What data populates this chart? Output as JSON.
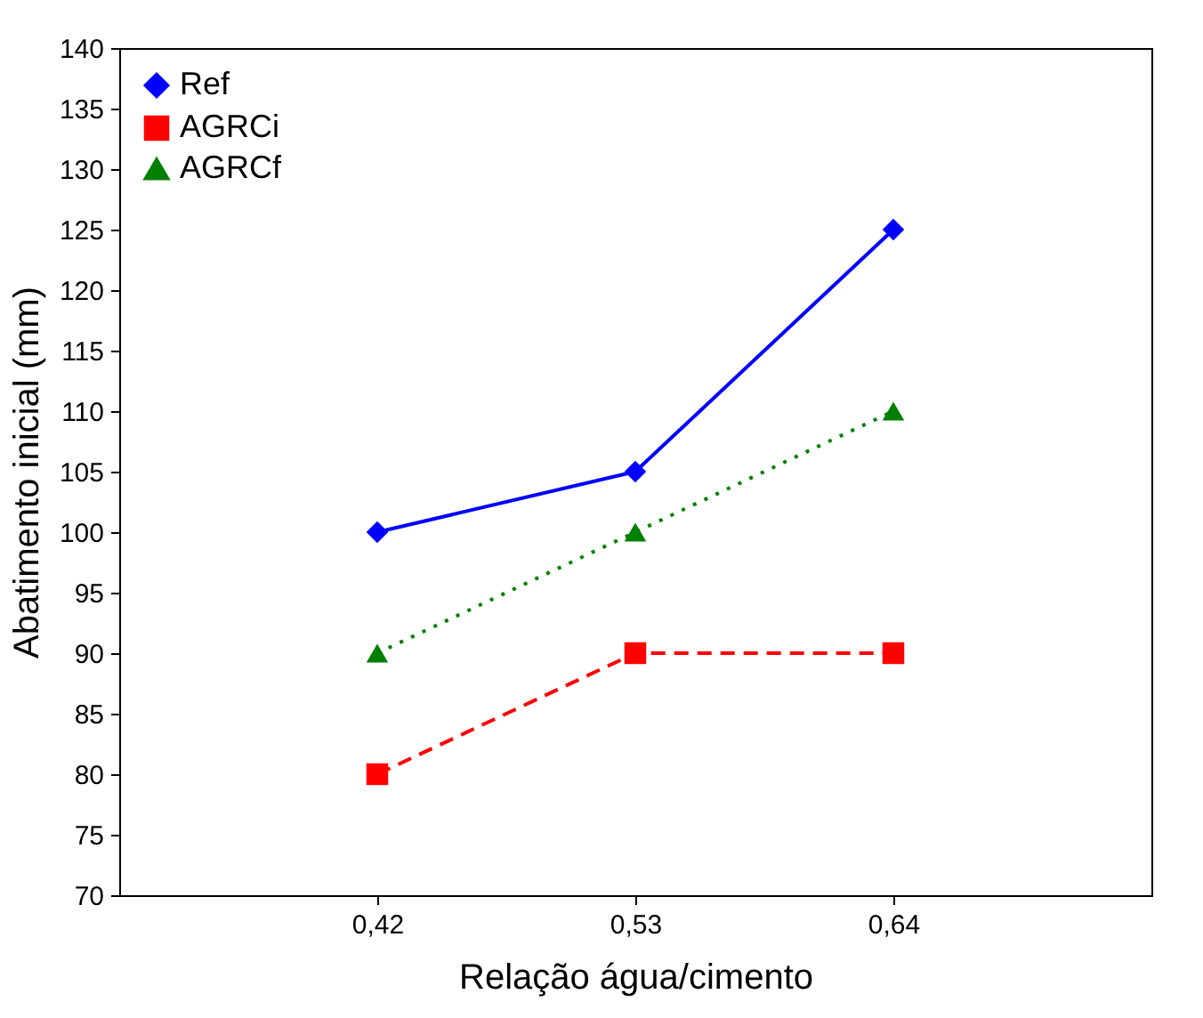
{
  "chart_data": {
    "type": "line",
    "xlabel": "Relação água/cimento",
    "ylabel": "Abatimento inicial (mm)",
    "x": [
      0.42,
      0.53,
      0.64
    ],
    "xlim": [
      0.31,
      0.75
    ],
    "xticks": [
      {
        "value": 0.42,
        "label": "0,42"
      },
      {
        "value": 0.53,
        "label": "0,53"
      },
      {
        "value": 0.64,
        "label": "0,64"
      }
    ],
    "ylim": [
      70,
      140
    ],
    "yticks": [
      70,
      75,
      80,
      85,
      90,
      95,
      100,
      105,
      110,
      115,
      120,
      125,
      130,
      135,
      140
    ],
    "grid": false,
    "legend": "top left",
    "series": [
      {
        "name": "Ref",
        "color": "#0000ff",
        "values": [
          100,
          105,
          125
        ],
        "marker": "diamond",
        "line_style": "solid"
      },
      {
        "name": "AGRCi",
        "color": "#ff0000",
        "values": [
          80,
          90,
          90
        ],
        "marker": "square",
        "line_style": "dashed"
      },
      {
        "name": "AGRCf",
        "color": "#008000",
        "values": [
          90,
          100,
          110
        ],
        "marker": "triangle",
        "line_style": "dotted"
      }
    ]
  }
}
